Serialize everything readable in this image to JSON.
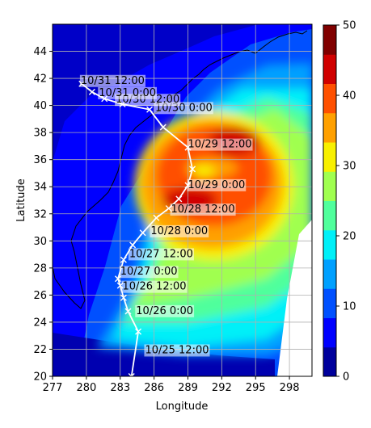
{
  "map": {
    "xlabel": "Longitude",
    "ylabel": "Latitude",
    "x_ticks": [
      "277",
      "280",
      "283",
      "286",
      "289",
      "292",
      "295",
      "298"
    ],
    "y_ticks": [
      "20",
      "22",
      "24",
      "26",
      "28",
      "30",
      "32",
      "34",
      "36",
      "38",
      "40",
      "42",
      "44"
    ],
    "colorbar_ticks": [
      "0",
      "10",
      "20",
      "30",
      "40",
      "50"
    ],
    "colorbar_colors": [
      "#00009c",
      "#0000ff",
      "#0050ff",
      "#00a0ff",
      "#00f0f8",
      "#50ff9c",
      "#a0ff50",
      "#f8f000",
      "#ffa000",
      "#ff5000",
      "#d00000",
      "#800000"
    ]
  },
  "chart_data": {
    "type": "filled-contour map with storm track",
    "xlabel": "Longitude",
    "ylabel": "Latitude",
    "xlim": [
      277,
      300
    ],
    "ylim": [
      20,
      46
    ],
    "colorbar_range": [
      0,
      50
    ],
    "colorbar_levels": [
      0,
      5,
      10,
      15,
      20,
      25,
      30,
      35,
      40,
      45,
      50
    ],
    "grid": true,
    "track": [
      {
        "lon": 284.0,
        "lat": 20.0
      },
      {
        "lon": 284.6,
        "lat": 23.3
      },
      {
        "lon": 283.7,
        "lat": 24.8
      },
      {
        "lon": 283.3,
        "lat": 25.8
      },
      {
        "lon": 283.0,
        "lat": 26.7
      },
      {
        "lon": 282.8,
        "lat": 27.2
      },
      {
        "lon": 283.3,
        "lat": 28.6
      },
      {
        "lon": 284.1,
        "lat": 29.7
      },
      {
        "lon": 285.0,
        "lat": 30.6
      },
      {
        "lon": 286.2,
        "lat": 31.7
      },
      {
        "lon": 287.3,
        "lat": 32.4
      },
      {
        "lon": 288.2,
        "lat": 33.1
      },
      {
        "lon": 289.0,
        "lat": 34.1
      },
      {
        "lon": 289.4,
        "lat": 35.3
      },
      {
        "lon": 289.0,
        "lat": 36.9
      },
      {
        "lon": 286.8,
        "lat": 38.4
      },
      {
        "lon": 285.6,
        "lat": 39.7
      },
      {
        "lon": 283.2,
        "lat": 40.1
      },
      {
        "lon": 281.6,
        "lat": 40.5
      },
      {
        "lon": 280.5,
        "lat": 41.0
      },
      {
        "lon": 279.6,
        "lat": 41.6
      }
    ],
    "annotations": [
      {
        "text": "10/25 12:00",
        "lon": 285.2,
        "lat": 22.0
      },
      {
        "text": "10/26 0:00",
        "lon": 284.4,
        "lat": 24.9
      },
      {
        "text": "10/26 12:00",
        "lon": 283.2,
        "lat": 26.7
      },
      {
        "text": "10/27 0:00",
        "lon": 283.0,
        "lat": 27.8
      },
      {
        "text": "10/27 12:00",
        "lon": 283.8,
        "lat": 29.1
      },
      {
        "text": "10/28 0:00",
        "lon": 285.7,
        "lat": 30.8
      },
      {
        "text": "10/28 12:00",
        "lon": 287.5,
        "lat": 32.4
      },
      {
        "text": "10/29 0:00",
        "lon": 289.0,
        "lat": 34.2
      },
      {
        "text": "10/29 12:00",
        "lon": 289.0,
        "lat": 37.2
      },
      {
        "text": "10/30 0:00",
        "lon": 286.1,
        "lat": 39.9
      },
      {
        "text": "10/30 12:00",
        "lon": 282.6,
        "lat": 40.5
      },
      {
        "text": "10/31 0:00",
        "lon": 281.1,
        "lat": 41.0
      },
      {
        "text": "10/31 12:00",
        "lon": 279.5,
        "lat": 41.9
      }
    ]
  }
}
